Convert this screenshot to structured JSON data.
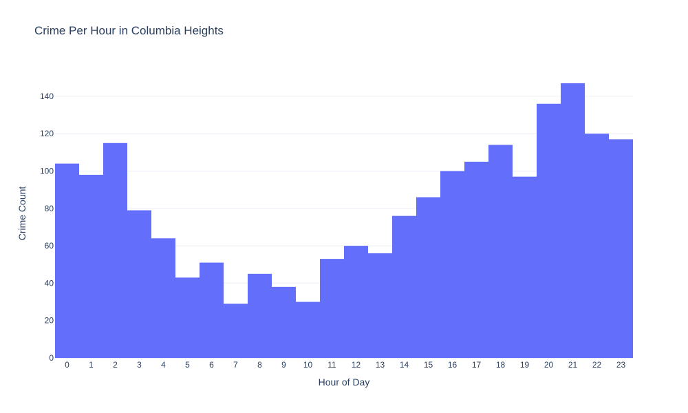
{
  "chart_data": {
    "type": "bar",
    "title": "Crime Per Hour in Columbia Heights",
    "xlabel": "Hour of Day",
    "ylabel": "Crime Count",
    "categories": [
      "0",
      "1",
      "2",
      "3",
      "4",
      "5",
      "6",
      "7",
      "8",
      "9",
      "10",
      "11",
      "12",
      "13",
      "14",
      "15",
      "16",
      "17",
      "18",
      "19",
      "20",
      "21",
      "22",
      "23"
    ],
    "values": [
      104,
      98,
      115,
      79,
      64,
      43,
      51,
      29,
      45,
      38,
      30,
      53,
      60,
      56,
      76,
      86,
      100,
      105,
      114,
      97,
      136,
      147,
      120,
      117
    ],
    "ylim": [
      0,
      154.7
    ],
    "yticks": [
      0,
      20,
      40,
      60,
      80,
      100,
      120,
      140
    ],
    "grid": true,
    "bar_color": "#636efa",
    "grid_color": "#ebf0f8",
    "background_color": "#ffffff"
  }
}
